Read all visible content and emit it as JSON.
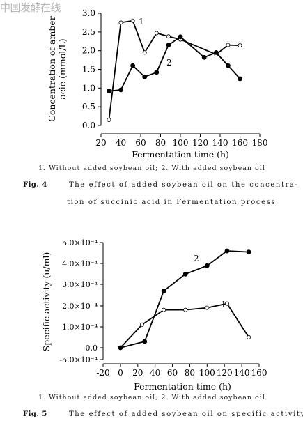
{
  "watermark": "中国发酵在线",
  "figures": [
    {
      "label": "Fig. 4",
      "caption_line1": "The effect of added soybean oil on the concentra-",
      "caption_line2": "tion of succinic acid in Fermentation process",
      "legend_text": "1. Without added soybean oil;   2. With added soybean oil"
    },
    {
      "label": "Fig. 5",
      "caption_line1": "The effect of added soybean oil on specific activity",
      "legend_text": "1. Without added soybean oil;   2. With added soybean oil"
    }
  ],
  "chart_data": [
    {
      "type": "line",
      "xlabel": "Fermentation time (h)",
      "ylabel_lines": [
        "Concentration of amber",
        "acie (mmol/L)"
      ],
      "xlim": [
        20,
        180
      ],
      "ylim": [
        0,
        3.0
      ],
      "xticks": [
        20,
        40,
        60,
        80,
        100,
        120,
        140,
        160,
        180
      ],
      "yticks": [
        0.0,
        0.5,
        1.0,
        1.5,
        2.0,
        2.5,
        3.0
      ],
      "ytick_labels": [
        "0.0",
        "0.5",
        "1.0",
        "1.5",
        "2.0",
        "2.5",
        "3.0"
      ],
      "series": [
        {
          "name": "1",
          "marker": "open-circle",
          "points": [
            [
              28,
              0.15
            ],
            [
              40,
              2.75
            ],
            [
              52,
              2.8
            ],
            [
              64,
              1.95
            ],
            [
              76,
              2.47
            ],
            [
              88,
              2.38
            ],
            [
              100,
              2.3
            ],
            [
              136,
              1.9
            ],
            [
              148,
              2.15
            ],
            [
              160,
              2.14
            ]
          ]
        },
        {
          "name": "2",
          "marker": "filled-circle",
          "points": [
            [
              28,
              0.92
            ],
            [
              40,
              0.95
            ],
            [
              52,
              1.6
            ],
            [
              64,
              1.3
            ],
            [
              76,
              1.42
            ],
            [
              88,
              2.15
            ],
            [
              100,
              2.37
            ],
            [
              124,
              1.82
            ],
            [
              136,
              1.95
            ],
            [
              148,
              1.6
            ],
            [
              160,
              1.25
            ]
          ]
        }
      ]
    },
    {
      "type": "line",
      "xlabel": "Fermentation time (h)",
      "ylabel": "Specific activity (u/ml)",
      "xlim": [
        -20,
        160
      ],
      "ylim": [
        -0.0005,
        0.0005
      ],
      "xticks": [
        -20,
        0,
        20,
        40,
        60,
        80,
        100,
        120,
        140,
        160
      ],
      "yticks": [
        0.0005,
        0.0004,
        0.0003,
        0.0002,
        0.0001,
        0.0,
        -0.0005
      ],
      "ytick_labels": [
        "5.0×10⁻⁴",
        "4.0×10⁻⁴",
        "3.0×10⁻⁴",
        "2.0×10⁻⁴",
        "1.0×10⁻⁴",
        "0.0",
        "-5.0×10⁻⁴"
      ],
      "series": [
        {
          "name": "1",
          "marker": "open-circle",
          "points": [
            [
              0,
              0.0
            ],
            [
              25,
              0.00011
            ],
            [
              50,
              0.00018
            ],
            [
              75,
              0.00018
            ],
            [
              100,
              0.00019
            ],
            [
              123,
              0.00021
            ],
            [
              148,
              5e-05
            ]
          ]
        },
        {
          "name": "2",
          "marker": "filled-circle",
          "points": [
            [
              0,
              0.0
            ],
            [
              28,
              3e-05
            ],
            [
              50,
              0.00027
            ],
            [
              75,
              0.00035
            ],
            [
              100,
              0.00039
            ],
            [
              123,
              0.00046
            ],
            [
              148,
              0.000455
            ]
          ]
        }
      ]
    }
  ]
}
